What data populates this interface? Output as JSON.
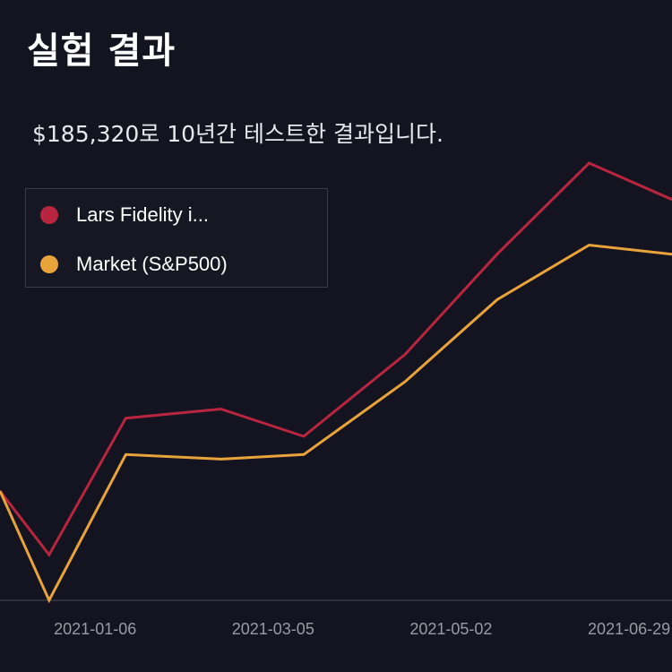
{
  "header": {
    "title": "실험 결과",
    "subtitle": "$185,320로 10년간 테스트한 결과입니다."
  },
  "colors": {
    "background": "#141420",
    "series_lars": "#b8253f",
    "series_market": "#e8a33a",
    "axis": "#2e2f3a",
    "tick_text": "#9a9aa4"
  },
  "chart_data": {
    "type": "line",
    "title": "실험 결과",
    "subtitle": "$185,320로 10년간 테스트한 결과입니다.",
    "x": [
      "2020-12-06",
      "2020-12-22",
      "2021-01-16",
      "2021-02-16",
      "2021-03-15",
      "2021-04-17",
      "2021-05-17",
      "2021-06-16",
      "2021-07-13"
    ],
    "x_tick_labels": [
      "2021-01-06",
      "2021-03-05",
      "2021-05-02",
      "2021-06-29"
    ],
    "legend_position": "top-left",
    "grid": false,
    "series": [
      {
        "name": "Lars Fidelity i...",
        "color": "#b8253f",
        "values": [
          100,
          93,
          108,
          109,
          106,
          115,
          126,
          136,
          132
        ]
      },
      {
        "name": "Market (S&P500)",
        "color": "#e8a33a",
        "values": [
          100,
          88,
          104,
          103.5,
          104,
          112,
          121,
          127,
          126
        ]
      }
    ],
    "ylim": [
      88,
      136
    ]
  }
}
